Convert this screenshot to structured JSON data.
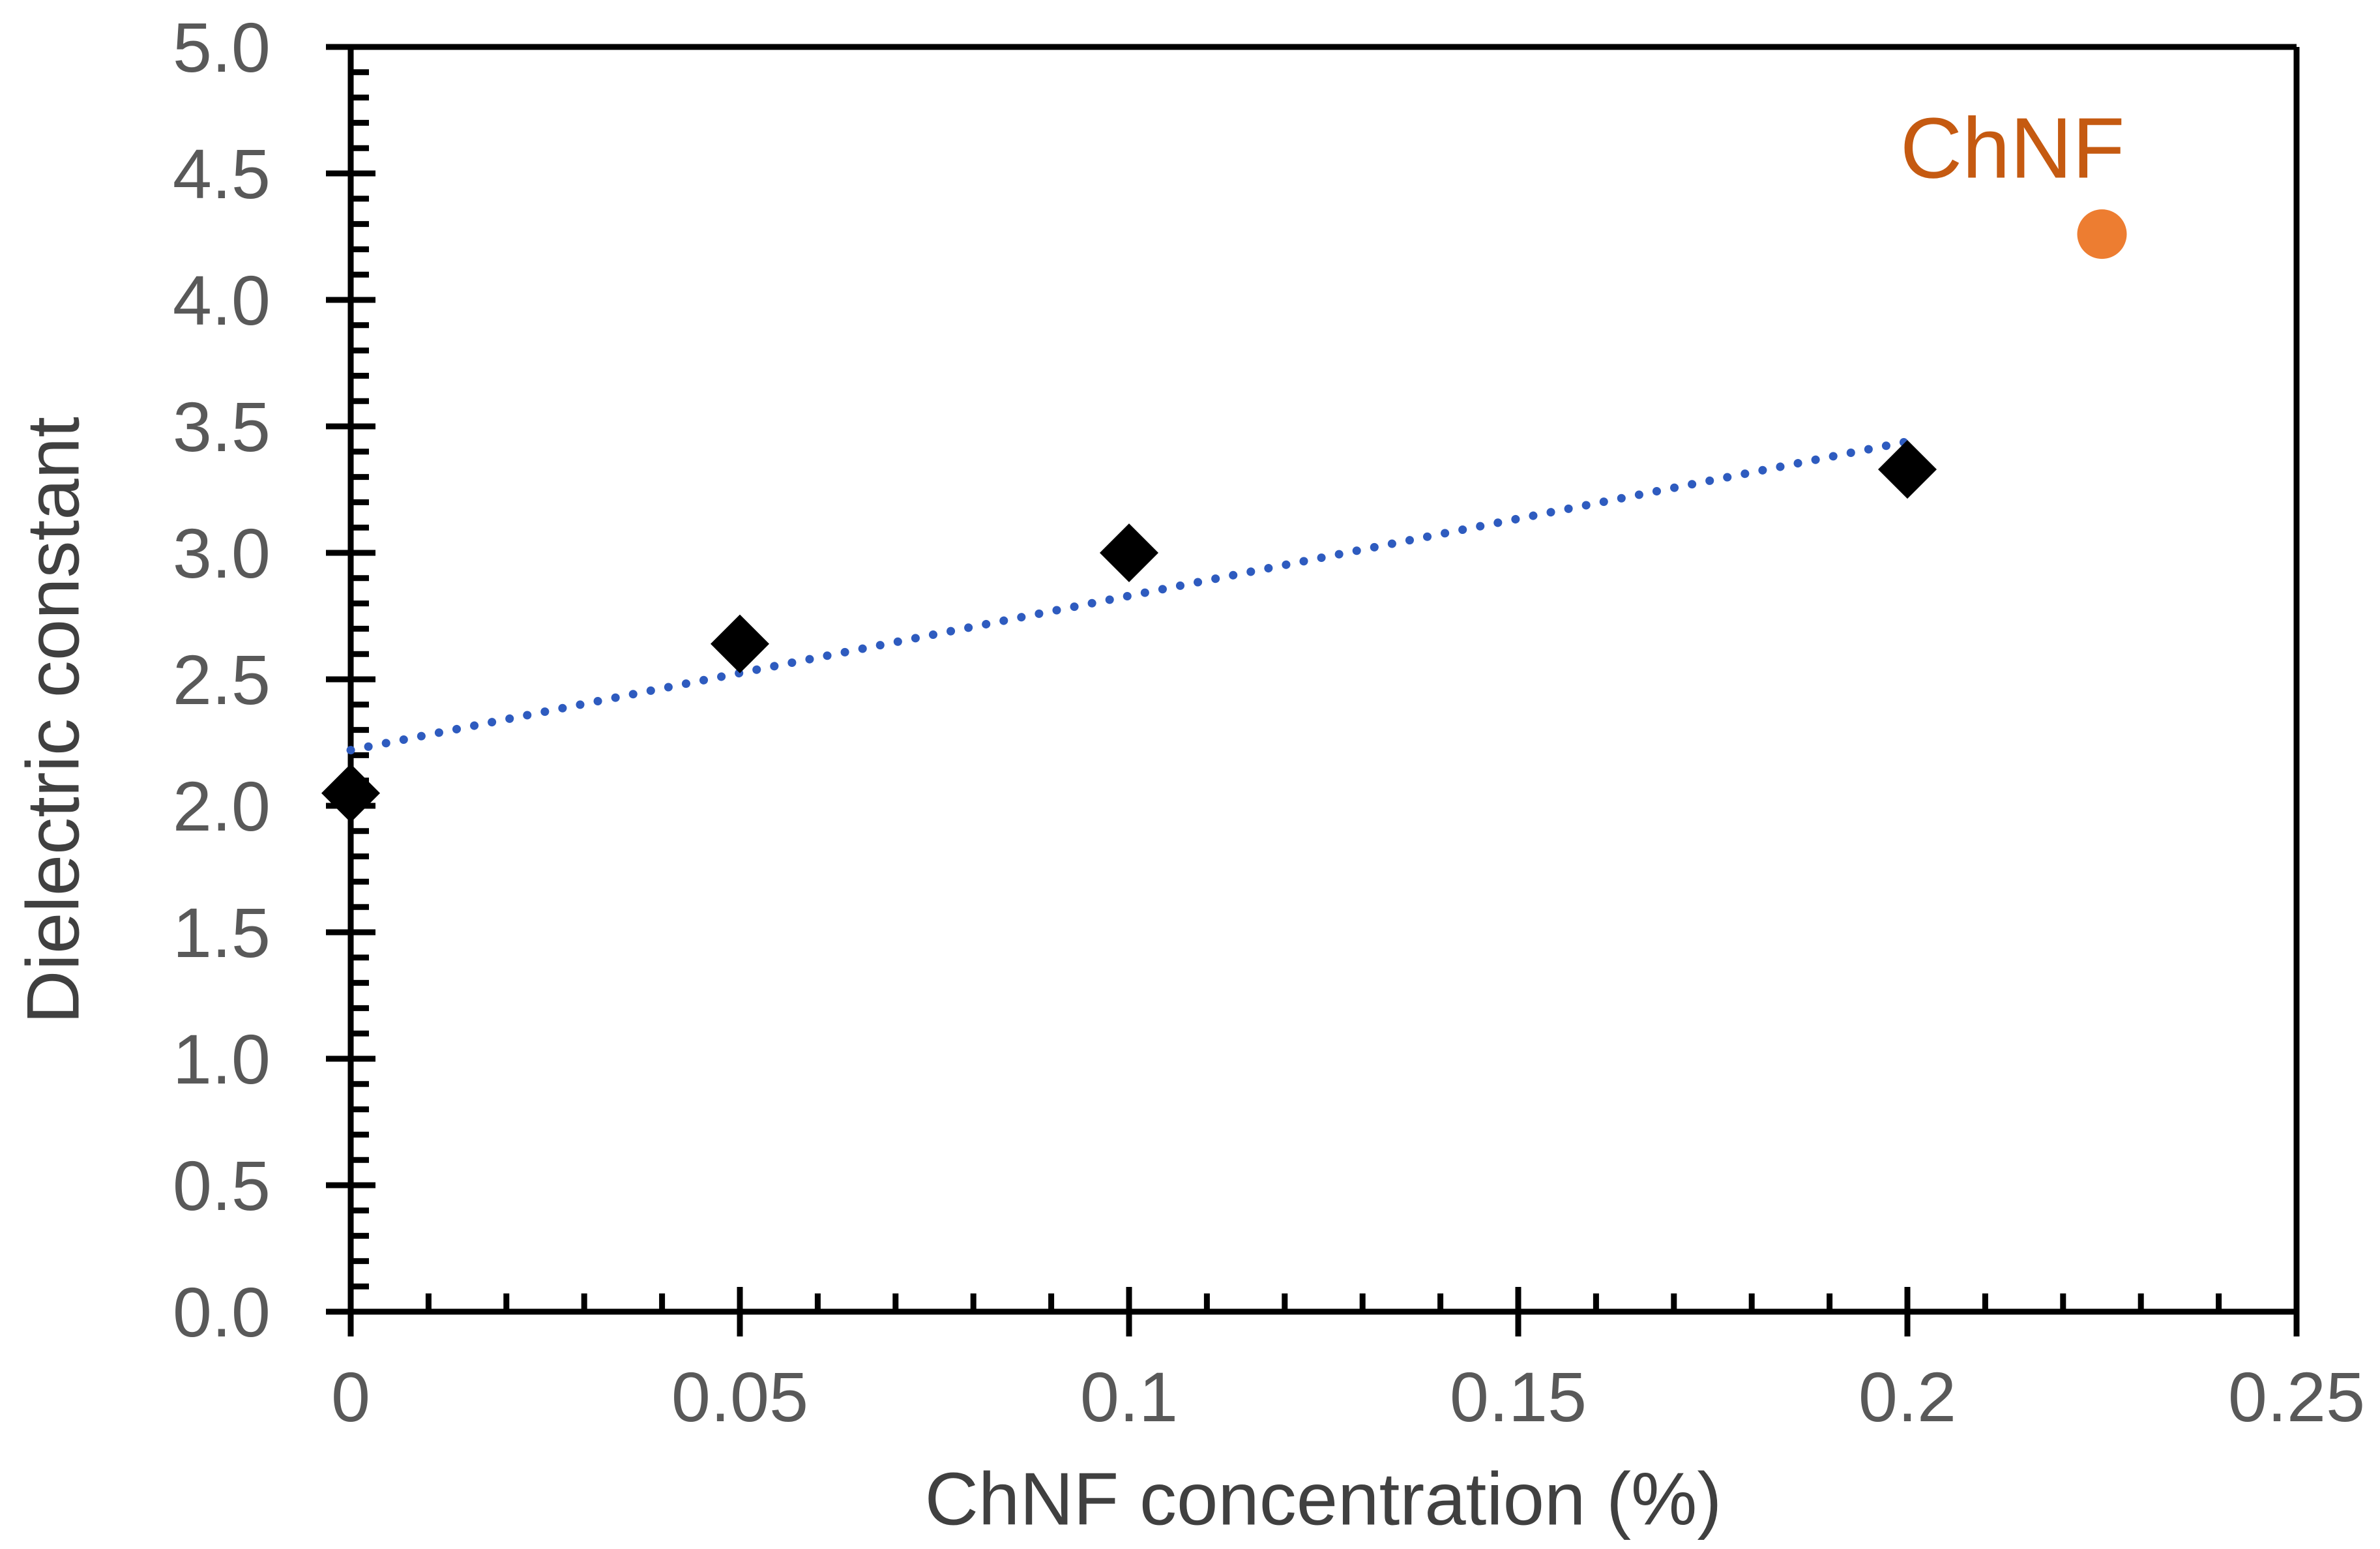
{
  "chart_data": {
    "type": "scatter",
    "title": "",
    "xlabel": "ChNF concentration (%)",
    "ylabel": "Dielectric constant",
    "xlim": [
      0,
      0.25
    ],
    "ylim": [
      0.0,
      5.0
    ],
    "grid": false,
    "legend": "none",
    "background_color": "#ffffff",
    "axis_color": "#000000",
    "tick_label_color": "#595959",
    "axis_title_color": "#404040",
    "x_major_ticks": [
      0,
      0.05,
      0.1,
      0.15,
      0.2,
      0.25
    ],
    "x_tick_labels": [
      "0",
      "0.05",
      "0.1",
      "0.15",
      "0.2",
      "0.25"
    ],
    "x_minor_step": 0.01,
    "y_major_ticks": [
      0,
      0.5,
      1,
      1.5,
      2,
      2.5,
      3,
      3.5,
      4,
      4.5,
      5
    ],
    "y_tick_labels": [
      "0.0",
      "0.5",
      "1.0",
      "1.5",
      "2.0",
      "2.5",
      "3.0",
      "3.5",
      "4.0",
      "4.5",
      "5.0"
    ],
    "y_minor_step": 0.1,
    "series": [
      {
        "marker": "diamond",
        "color": "#000000",
        "points": [
          [
            0,
            2.05
          ],
          [
            0.05,
            2.64
          ],
          [
            0.1,
            3.0
          ],
          [
            0.2,
            3.33
          ]
        ]
      },
      {
        "marker": "circle",
        "color": "#ED7D31",
        "points": [
          [
            0.225,
            4.26
          ]
        ]
      }
    ],
    "trendline": {
      "style": "dotted",
      "color": "#2E5BBF",
      "x": [
        0,
        0.2
      ],
      "y": [
        2.22,
        3.44
      ]
    },
    "annotation": {
      "text": "ChNF",
      "color": "#C55A11",
      "x": 0.2135,
      "y": 4.6
    }
  }
}
